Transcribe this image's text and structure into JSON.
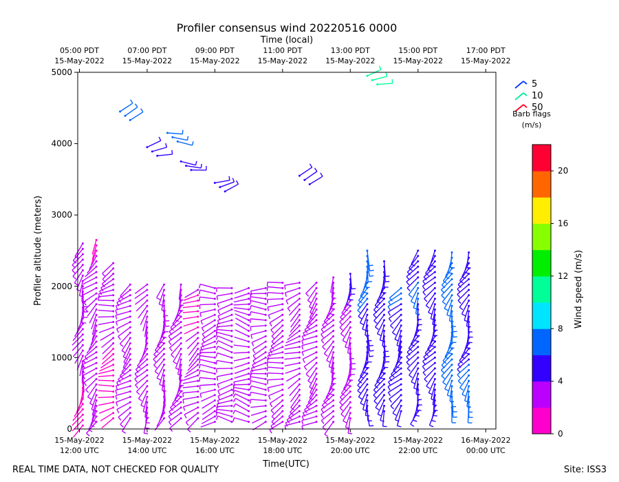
{
  "chart_data": {
    "type": "scatter",
    "subtype": "wind-barbs",
    "title": "Profiler consensus wind 20220516 0000",
    "top_axis_label": "Time (local)",
    "xlabel": "Time(UTC)",
    "ylabel": "Profiler altitude (meters)",
    "ylim": [
      0,
      5000
    ],
    "xlim_hours_from_1200utc": [
      -0.05,
      12.3
    ],
    "yticks": [
      0,
      1000,
      2000,
      3000,
      4000,
      5000
    ],
    "bottom_ticks": [
      {
        "hour": 0,
        "line1": "15-May-2022",
        "line2": "12:00 UTC"
      },
      {
        "hour": 2,
        "line1": "15-May-2022",
        "line2": "14:00 UTC"
      },
      {
        "hour": 4,
        "line1": "15-May-2022",
        "line2": "16:00 UTC"
      },
      {
        "hour": 6,
        "line1": "15-May-2022",
        "line2": "18:00 UTC"
      },
      {
        "hour": 8,
        "line1": "15-May-2022",
        "line2": "20:00 UTC"
      },
      {
        "hour": 10,
        "line1": "15-May-2022",
        "line2": "22:00 UTC"
      },
      {
        "hour": 12,
        "line1": "16-May-2022",
        "line2": "00:00 UTC"
      }
    ],
    "top_ticks": [
      {
        "hour": 0,
        "line1": "05:00 PDT",
        "line2": "15-May-2022"
      },
      {
        "hour": 2,
        "line1": "07:00 PDT",
        "line2": "15-May-2022"
      },
      {
        "hour": 4,
        "line1": "09:00 PDT",
        "line2": "15-May-2022"
      },
      {
        "hour": 6,
        "line1": "11:00 PDT",
        "line2": "15-May-2022"
      },
      {
        "hour": 8,
        "line1": "13:00 PDT",
        "line2": "15-May-2022"
      },
      {
        "hour": 10,
        "line1": "15:00 PDT",
        "line2": "15-May-2022"
      },
      {
        "hour": 12,
        "line1": "17:00 PDT",
        "line2": "15-May-2022"
      }
    ],
    "barb_legend": {
      "items": [
        {
          "label": "5",
          "color": "#0033ff"
        },
        {
          "label": "10",
          "color": "#00ee99"
        },
        {
          "label": "50",
          "color": "#ff0022"
        }
      ],
      "title_line1": "Barb flags",
      "title_line2": "(m/s)"
    },
    "colorbar": {
      "label": "Wind speed (m/s)",
      "range": [
        0,
        22
      ],
      "ticks": [
        0,
        4,
        8,
        12,
        16,
        20
      ],
      "bands": [
        {
          "from": 0,
          "to": 2,
          "color": "#ff00cc"
        },
        {
          "from": 2,
          "to": 4,
          "color": "#bb00ff"
        },
        {
          "from": 4,
          "to": 6,
          "color": "#3300ff"
        },
        {
          "from": 6,
          "to": 8,
          "color": "#0066ff"
        },
        {
          "from": 8,
          "to": 10,
          "color": "#00e5ff"
        },
        {
          "from": 10,
          "to": 12,
          "color": "#00ff99"
        },
        {
          "from": 12,
          "to": 14,
          "color": "#00ee00"
        },
        {
          "from": 14,
          "to": 16,
          "color": "#88ff00"
        },
        {
          "from": 16,
          "to": 18,
          "color": "#ffee00"
        },
        {
          "from": 18,
          "to": 20,
          "color": "#ff6600"
        },
        {
          "from": 20,
          "to": 22,
          "color": "#ff0033"
        }
      ]
    },
    "series": [
      {
        "hour": 0.1,
        "alt_range": [
          50,
          2650
        ],
        "speed": 1.5,
        "dir": 200
      },
      {
        "hour": 0.5,
        "alt_range": [
          100,
          2650
        ],
        "speed": 1.5,
        "dir": 220
      },
      {
        "hour": 1.0,
        "alt_range": [
          150,
          2350
        ],
        "speed": 1.5,
        "dir": 250
      },
      {
        "hour": 1.5,
        "alt_range": [
          150,
          2050
        ],
        "speed": 1.8,
        "dir": 230
      },
      {
        "hour": 2.0,
        "alt_range": [
          150,
          2050
        ],
        "speed": 2.0,
        "dir": 210
      },
      {
        "hour": 2.5,
        "alt_range": [
          150,
          2050
        ],
        "speed": 2.0,
        "dir": 200
      },
      {
        "hour": 3.0,
        "alt_range": [
          150,
          2050
        ],
        "speed": 2.0,
        "dir": 210
      },
      {
        "hour": 3.5,
        "alt_range": [
          150,
          2000
        ],
        "speed": 1.8,
        "dir": 240
      },
      {
        "hour": 4.0,
        "alt_range": [
          100,
          2000
        ],
        "speed": 2.0,
        "dir": 260
      },
      {
        "hour": 4.5,
        "alt_range": [
          100,
          2000
        ],
        "speed": 2.2,
        "dir": 270
      },
      {
        "hour": 5.0,
        "alt_range": [
          100,
          2000
        ],
        "speed": 2.0,
        "dir": 275
      },
      {
        "hour": 5.5,
        "alt_range": [
          100,
          2000
        ],
        "speed": 2.0,
        "dir": 260
      },
      {
        "hour": 6.0,
        "alt_range": [
          100,
          2050
        ],
        "speed": 2.0,
        "dir": 250
      },
      {
        "hour": 6.5,
        "alt_range": [
          100,
          2050
        ],
        "speed": 2.0,
        "dir": 240
      },
      {
        "hour": 7.0,
        "alt_range": [
          100,
          2100
        ],
        "speed": 2.2,
        "dir": 230
      },
      {
        "hour": 7.5,
        "alt_range": [
          100,
          2150
        ],
        "speed": 2.5,
        "dir": 210
      },
      {
        "hour": 8.0,
        "alt_range": [
          150,
          2200
        ],
        "speed": 3.0,
        "dir": 200
      },
      {
        "hour": 8.5,
        "alt_range": [
          250,
          2500
        ],
        "speed": 4.5,
        "dir": 195
      },
      {
        "hour": 9.0,
        "alt_range": [
          250,
          2400
        ],
        "speed": 4.5,
        "dir": 200
      },
      {
        "hour": 9.5,
        "alt_range": [
          250,
          2000
        ],
        "speed": 5.0,
        "dir": 215
      },
      {
        "hour": 10.0,
        "alt_range": [
          250,
          2550
        ],
        "speed": 4.5,
        "dir": 205
      },
      {
        "hour": 10.5,
        "alt_range": [
          250,
          2550
        ],
        "speed": 4.5,
        "dir": 210
      },
      {
        "hour": 11.0,
        "alt_range": [
          300,
          2500
        ],
        "speed": 6.0,
        "dir": 200
      },
      {
        "hour": 11.5,
        "alt_range": [
          300,
          2500
        ],
        "speed": 5.0,
        "dir": 205
      }
    ],
    "upper_level_barbs": [
      {
        "hour": 1.2,
        "alt": 4450,
        "speed": 6.5
      },
      {
        "hour": 2.0,
        "alt": 3950,
        "speed": 5.0
      },
      {
        "hour": 2.6,
        "alt": 4150,
        "speed": 6.5
      },
      {
        "hour": 3.0,
        "alt": 3750,
        "speed": 5.0
      },
      {
        "hour": 4.0,
        "alt": 3450,
        "speed": 4.5
      },
      {
        "hour": 6.5,
        "alt": 3550,
        "speed": 4.5
      },
      {
        "hour": 8.5,
        "alt": 4950,
        "speed": 11.0
      }
    ],
    "footer_left": "REAL TIME DATA, NOT CHECKED FOR QUALITY",
    "footer_right": "Site: ISS3"
  }
}
